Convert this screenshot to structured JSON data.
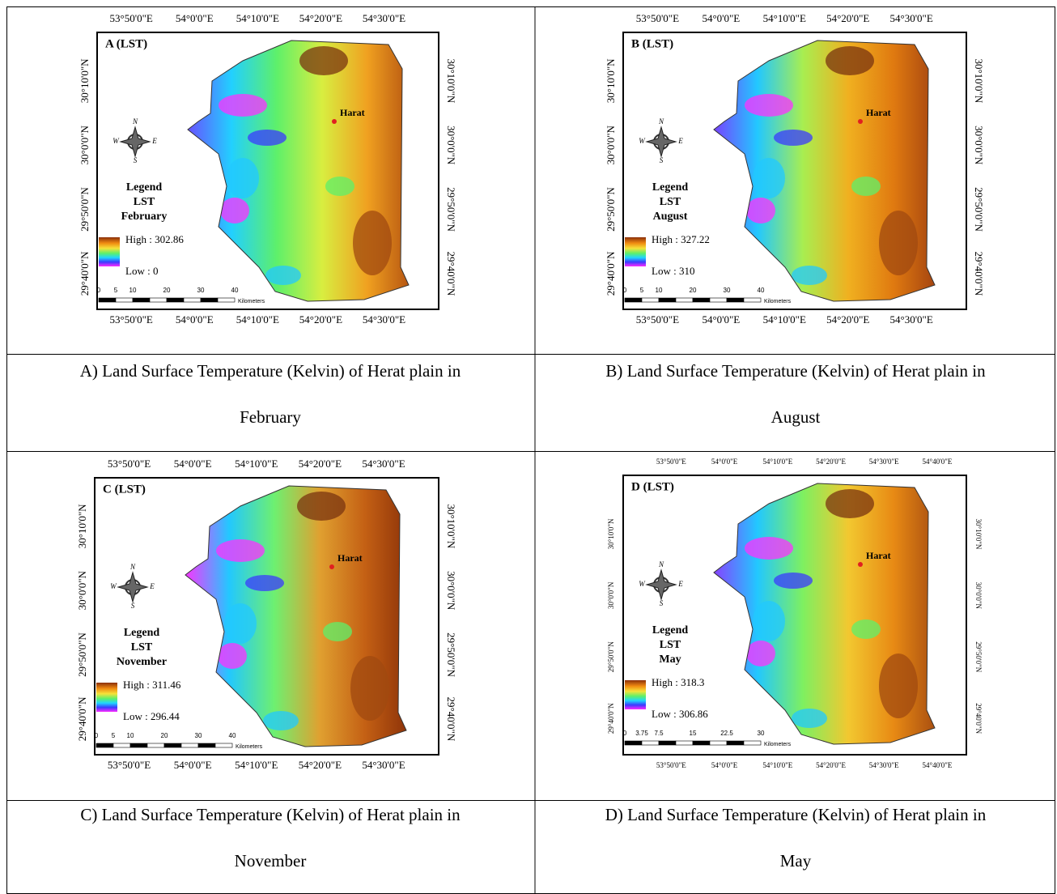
{
  "panels": [
    {
      "label": "A (LST)",
      "legend": [
        "Legend",
        "LST",
        "February"
      ],
      "high": "High : 302.86",
      "low": "Low : 0",
      "city": "Harat",
      "compass": [
        "N",
        "W",
        "E",
        "S"
      ],
      "top_ticks": [
        "53°50'0\"E",
        "54°0'0\"E",
        "54°10'0\"E",
        "54°20'0\"E",
        "54°30'0\"E"
      ],
      "bottom_ticks": [
        "53°50'0\"E",
        "54°0'0\"E",
        "54°10'0\"E",
        "54°20'0\"E",
        "54°30'0\"E"
      ],
      "left_ticks": [
        "30°10'0\"N",
        "30°0'0\"N",
        "29°50'0\"N",
        "29°40'0\"N"
      ],
      "right_ticks": [
        "30°10'0\"N",
        "30°0'0\"N",
        "29°50'0\"N",
        "29°40'0\"N"
      ],
      "scale": [
        "0",
        "5",
        "10",
        "20",
        "30",
        "40"
      ],
      "scale_unit": "Kilometers",
      "caption": [
        "A) Land Surface Temperature (Kelvin) of Herat plain in",
        "February"
      ]
    },
    {
      "label": "B (LST)",
      "legend": [
        "Legend",
        "LST",
        "August"
      ],
      "high": "High : 327.22",
      "low": "Low : 310",
      "city": "Harat",
      "compass": [
        "N",
        "W",
        "E",
        "S"
      ],
      "top_ticks": [
        "53°50'0\"E",
        "54°0'0\"E",
        "54°10'0\"E",
        "54°20'0\"E",
        "54°30'0\"E"
      ],
      "bottom_ticks": [
        "53°50'0\"E",
        "54°0'0\"E",
        "54°10'0\"E",
        "54°20'0\"E",
        "54°30'0\"E"
      ],
      "left_ticks": [
        "30°10'0\"N",
        "30°0'0\"N",
        "29°50'0\"N",
        "29°40'0\"N"
      ],
      "right_ticks": [
        "30°10'0\"N",
        "30°0'0\"N",
        "29°50'0\"N",
        "29°40'0\"N"
      ],
      "scale": [
        "0",
        "5",
        "10",
        "20",
        "30",
        "40"
      ],
      "scale_unit": "Kilometers",
      "caption": [
        "B) Land Surface Temperature (Kelvin) of Herat plain in",
        "August"
      ]
    },
    {
      "label": "C (LST)",
      "legend": [
        "Legend",
        "LST",
        "November"
      ],
      "high": "High : 311.46",
      "low": "Low : 296.44",
      "city": "Harat",
      "compass": [
        "N",
        "W",
        "E",
        "S"
      ],
      "top_ticks": [
        "53°50'0\"E",
        "54°0'0\"E",
        "54°10'0\"E",
        "54°20'0\"E",
        "54°30'0\"E"
      ],
      "bottom_ticks": [
        "53°50'0\"E",
        "54°0'0\"E",
        "54°10'0\"E",
        "54°20'0\"E",
        "54°30'0\"E"
      ],
      "left_ticks": [
        "30°10'0\"N",
        "30°0'0\"N",
        "29°50'0\"N",
        "29°40'0\"N"
      ],
      "right_ticks": [
        "30°10'0\"N",
        "30°0'0\"N",
        "29°50'0\"N",
        "29°40'0\"N"
      ],
      "scale": [
        "0",
        "5",
        "10",
        "20",
        "30",
        "40"
      ],
      "scale_unit": "Kilometers",
      "caption": [
        "C) Land Surface Temperature (Kelvin) of Herat plain in",
        "November"
      ]
    },
    {
      "label": "D (LST)",
      "legend": [
        "Legend",
        "LST",
        "May"
      ],
      "high": "High : 318.3",
      "low": "Low : 306.86",
      "city": "Harat",
      "compass": [
        "N",
        "W",
        "E",
        "S"
      ],
      "top_ticks": [
        "53°50'0\"E",
        "54°0'0\"E",
        "54°10'0\"E",
        "54°20'0\"E",
        "54°30'0\"E",
        "54°40'0\"E"
      ],
      "bottom_ticks": [
        "53°50'0\"E",
        "54°0'0\"E",
        "54°10'0\"E",
        "54°20'0\"E",
        "54°30'0\"E",
        "54°40'0\"E"
      ],
      "left_ticks": [
        "30°10'0\"N",
        "30°0'0\"N",
        "29°50'0\"N",
        "29°40'0\"N"
      ],
      "right_ticks": [
        "30°10'0\"N",
        "30°0'0\"N",
        "29°50'0\"N",
        "29°40'0\"N"
      ],
      "scale": [
        "0",
        "3.75",
        "7.5",
        "15",
        "22.5",
        "30"
      ],
      "scale_unit": "Kilometers",
      "caption": [
        "D) Land Surface Temperature (Kelvin) of Herat plain in",
        "May"
      ]
    }
  ]
}
